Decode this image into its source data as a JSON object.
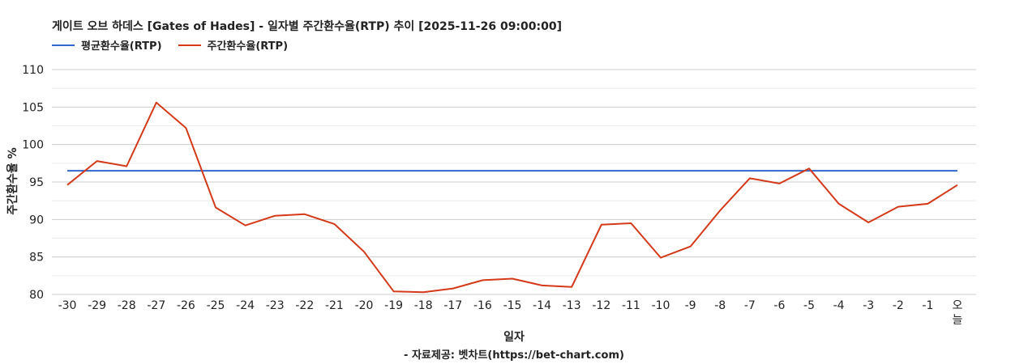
{
  "title": "게이트 오브 하데스 [Gates of Hades] - 일자별 주간환수율(RTP) 추이 [2025-11-26 09:00:00]",
  "source": "- 자료제공: 벳차트(https://bet-chart.com)",
  "colors": {
    "average": "#3366cc",
    "weekly": "#d4391a",
    "grid": "#cccccc",
    "minorGrid": "#ebebeb"
  },
  "chart_data": {
    "type": "line",
    "xlabel": "일자",
    "ylabel": "주간환수율 %",
    "ylim": [
      80,
      110
    ],
    "yticks": [
      110,
      105,
      100,
      95,
      90,
      85,
      80
    ],
    "grid": true,
    "legend_position": "top-left",
    "categories": [
      "-30",
      "-29",
      "-28",
      "-27",
      "-26",
      "-25",
      "-24",
      "-23",
      "-22",
      "-21",
      "-20",
      "-19",
      "-18",
      "-17",
      "-16",
      "-15",
      "-14",
      "-13",
      "-12",
      "-11",
      "-10",
      "-9",
      "-8",
      "-7",
      "-6",
      "-5",
      "-4",
      "-3",
      "-2",
      "-1",
      "오늘"
    ],
    "series": [
      {
        "name": "평균환수율(RTP)",
        "color": "#3366cc",
        "values": [
          96.5,
          96.5,
          96.5,
          96.5,
          96.5,
          96.5,
          96.5,
          96.5,
          96.5,
          96.5,
          96.5,
          96.5,
          96.5,
          96.5,
          96.5,
          96.5,
          96.5,
          96.5,
          96.5,
          96.5,
          96.5,
          96.5,
          96.5,
          96.5,
          96.5,
          96.5,
          96.5,
          96.5,
          96.5,
          96.5,
          96.5
        ]
      },
      {
        "name": "주간환수율(RTP)",
        "color": "#d4391a",
        "values": [
          94.6,
          97.8,
          97.1,
          105.6,
          102.2,
          91.6,
          89.2,
          90.5,
          90.7,
          89.4,
          85.7,
          80.4,
          80.3,
          80.8,
          81.9,
          82.1,
          81.2,
          81.0,
          89.3,
          89.5,
          84.9,
          86.4,
          91.2,
          95.5,
          94.8,
          96.8,
          92.1,
          89.6,
          91.7,
          92.1,
          94.6
        ]
      }
    ]
  }
}
